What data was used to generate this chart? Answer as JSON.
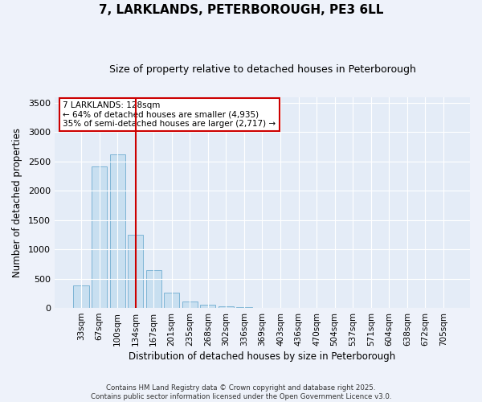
{
  "title": "7, LARKLANDS, PETERBOROUGH, PE3 6LL",
  "subtitle": "Size of property relative to detached houses in Peterborough",
  "xlabel": "Distribution of detached houses by size in Peterborough",
  "ylabel": "Number of detached properties",
  "categories": [
    "33sqm",
    "67sqm",
    "100sqm",
    "134sqm",
    "167sqm",
    "201sqm",
    "235sqm",
    "268sqm",
    "302sqm",
    "336sqm",
    "369sqm",
    "403sqm",
    "436sqm",
    "470sqm",
    "504sqm",
    "537sqm",
    "571sqm",
    "604sqm",
    "638sqm",
    "672sqm",
    "705sqm"
  ],
  "values": [
    390,
    2420,
    2620,
    1250,
    640,
    255,
    110,
    55,
    28,
    12,
    6,
    4,
    3,
    2,
    1,
    1,
    0,
    0,
    0,
    0,
    0
  ],
  "bar_color": "#c8dff0",
  "bar_edge_color": "#7eb5d6",
  "vline_x_index": 3,
  "vline_color": "#cc0000",
  "annotation_title": "7 LARKLANDS: 128sqm",
  "annotation_line1": "← 64% of detached houses are smaller (4,935)",
  "annotation_line2": "35% of semi-detached houses are larger (2,717) →",
  "annotation_box_color": "#cc0000",
  "ylim": [
    0,
    3600
  ],
  "yticks": [
    0,
    500,
    1000,
    1500,
    2000,
    2500,
    3000,
    3500
  ],
  "footer_line1": "Contains HM Land Registry data © Crown copyright and database right 2025.",
  "footer_line2": "Contains public sector information licensed under the Open Government Licence v3.0.",
  "bg_color": "#eef2fa",
  "plot_bg_color": "#e4ecf7",
  "grid_color": "#ffffff",
  "title_fontsize": 11,
  "subtitle_fontsize": 9
}
